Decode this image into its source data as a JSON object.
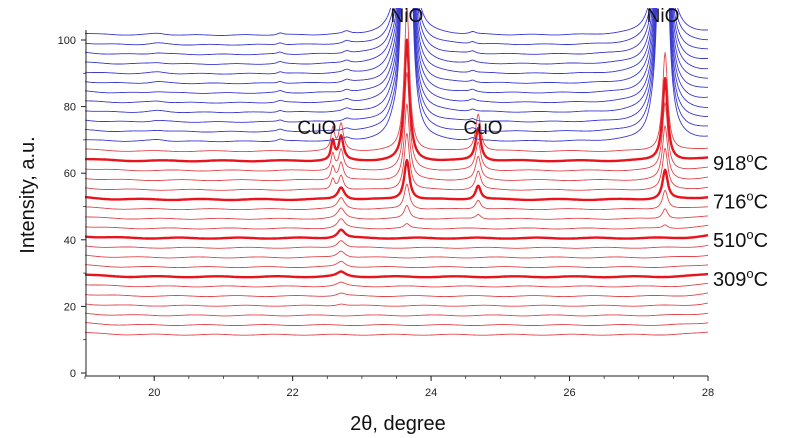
{
  "chart_data": {
    "type": "line",
    "title": "",
    "xlabel": "2θ, degree",
    "ylabel": "Intensity, a.u.",
    "xlim": [
      19,
      28
    ],
    "ylim": [
      0,
      110
    ],
    "x_ticks": [
      20,
      22,
      24,
      26,
      28
    ],
    "y_ticks": [
      0,
      20,
      40,
      60,
      80,
      100
    ],
    "grid": false,
    "legend": "none",
    "colors": {
      "low": "#e0474c",
      "highlight": "#e8141c",
      "high": "#3a3ad0"
    },
    "series_summary": {
      "count": 32,
      "baseline_start": 11.5,
      "baseline_step": 2.9,
      "red_count": 20,
      "blue_count": 12,
      "highlighted_traces": [
        {
          "index": 6,
          "temperature": "309°C",
          "offset": 29.0
        },
        {
          "index": 10,
          "temperature": "510°C",
          "offset": 40.6
        },
        {
          "index": 14,
          "temperature": "716°C",
          "offset": 52.2
        },
        {
          "index": 18,
          "temperature": "918°C",
          "offset": 63.8
        }
      ]
    },
    "peaks": [
      {
        "label": "CuO",
        "position": 22.7
      },
      {
        "label": "CuO",
        "position": 24.68
      },
      {
        "label": "NiO",
        "position": 23.65
      },
      {
        "label": "NiO",
        "position": 27.35
      }
    ],
    "temperature_labels": [
      {
        "base": "918",
        "sup": "o",
        "unit": "C",
        "trace": 18
      },
      {
        "base": "716",
        "sup": "o",
        "unit": "C",
        "trace": 14
      },
      {
        "base": "510",
        "sup": "o",
        "unit": "C",
        "trace": 10
      },
      {
        "base": "309",
        "sup": "o",
        "unit": "C",
        "trace": 6
      }
    ],
    "peak_labels": [
      {
        "text": "NiO",
        "x": 23.65
      },
      {
        "text": "NiO",
        "x": 27.35
      },
      {
        "text": "CuO",
        "x": 22.35
      },
      {
        "text": "CuO",
        "x": 24.75
      }
    ]
  }
}
